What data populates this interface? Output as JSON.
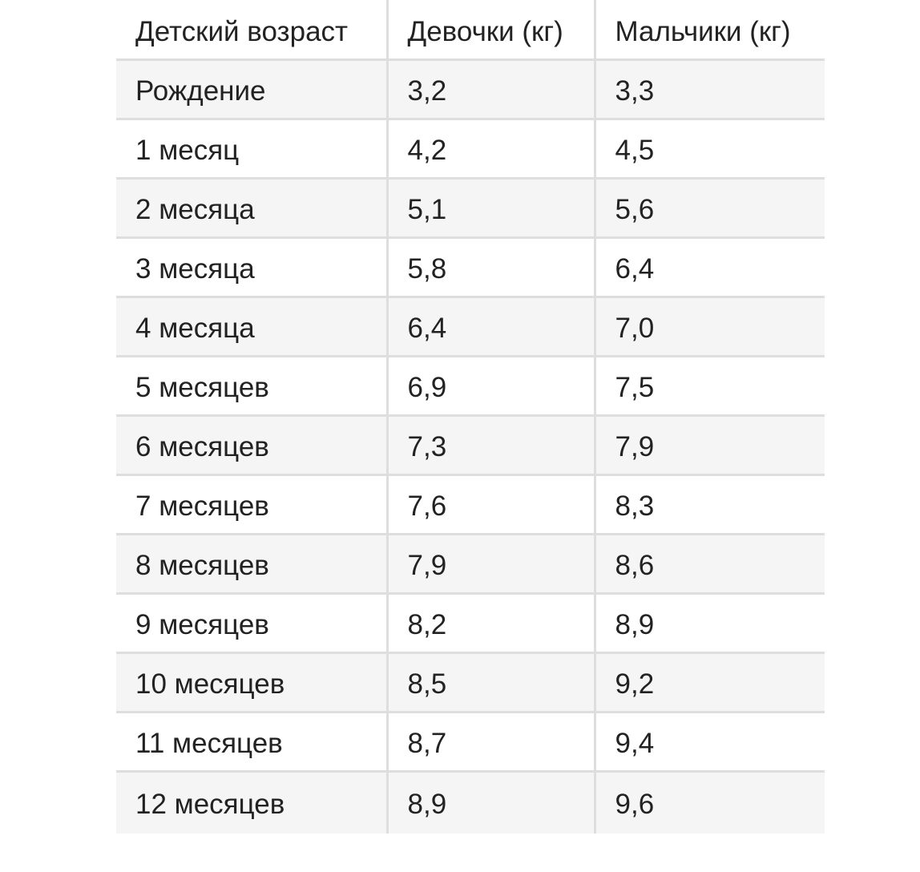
{
  "table": {
    "headers": [
      "Детский возраст",
      "Девочки (кг)",
      "Мальчики (кг)"
    ],
    "rows": [
      [
        "Рождение",
        "3,2",
        "3,3"
      ],
      [
        "1 месяц",
        "4,2",
        "4,5"
      ],
      [
        "2 месяца",
        "5,1",
        "5,6"
      ],
      [
        "3 месяца",
        "5,8",
        "6,4"
      ],
      [
        "4 месяца",
        "6,4",
        "7,0"
      ],
      [
        "5 месяцев",
        "6,9",
        "7,5"
      ],
      [
        "6 месяцев",
        "7,3",
        "7,9"
      ],
      [
        "7 месяцев",
        "7,6",
        "8,3"
      ],
      [
        "8 месяцев",
        "7,9",
        "8,6"
      ],
      [
        "9 месяцев",
        "8,2",
        "8,9"
      ],
      [
        "10 месяцев",
        "8,5",
        "9,2"
      ],
      [
        "11 месяцев",
        "8,7",
        "9,4"
      ],
      [
        "12 месяцев",
        "8,9",
        "9,6"
      ]
    ]
  }
}
